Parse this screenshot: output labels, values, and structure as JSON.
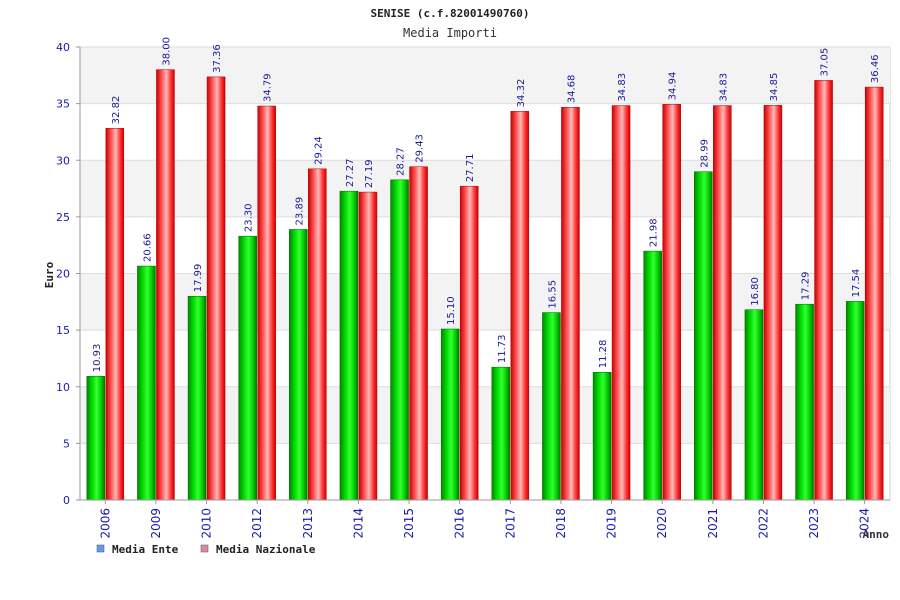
{
  "chart_data": {
    "type": "bar",
    "title": "SENISE (c.f.82001490760)",
    "subtitle": "Media Importi",
    "ylabel": "Euro",
    "xlabel": "Anno",
    "ylim": [
      0,
      40
    ],
    "yticks": [
      0,
      5,
      10,
      15,
      20,
      25,
      30,
      35,
      40
    ],
    "grid": true,
    "legend_position": "bottom-left",
    "categories": [
      "2006",
      "2009",
      "2010",
      "2012",
      "2013",
      "2014",
      "2015",
      "2016",
      "2017",
      "2018",
      "2019",
      "2020",
      "2021",
      "2022",
      "2023",
      "2024"
    ],
    "series": [
      {
        "name": "Media Ente",
        "color": "#00c000",
        "legend_color": "#6699ee",
        "values": [
          10.93,
          20.66,
          17.99,
          23.3,
          23.89,
          27.27,
          28.27,
          15.1,
          11.73,
          16.55,
          11.28,
          21.98,
          28.99,
          16.8,
          17.29,
          17.54
        ]
      },
      {
        "name": "Media Nazionale",
        "color": "#ee1111",
        "legend_color": "#dd88aa",
        "values": [
          32.82,
          38.0,
          37.36,
          34.79,
          29.24,
          27.19,
          29.43,
          27.71,
          34.32,
          34.68,
          34.83,
          34.94,
          34.83,
          34.85,
          37.05,
          36.46
        ]
      }
    ]
  }
}
